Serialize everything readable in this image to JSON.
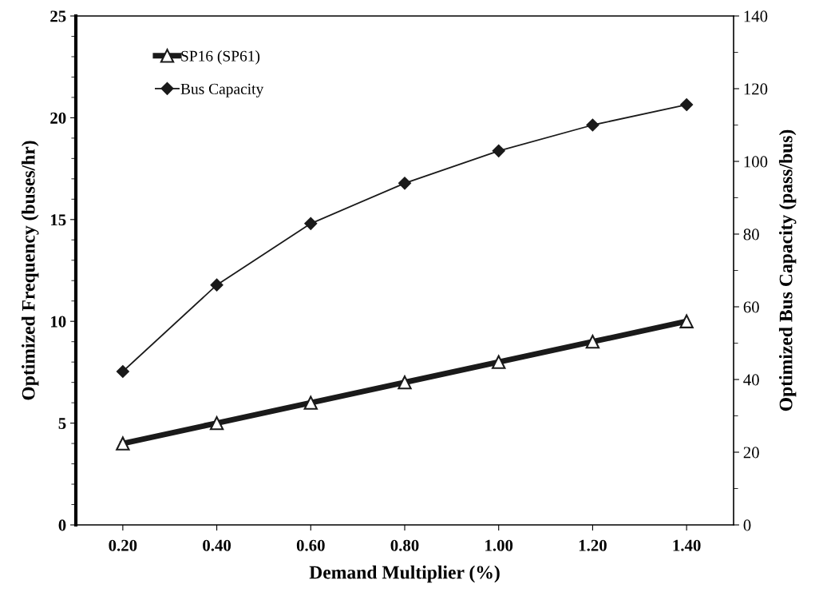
{
  "chart_data": {
    "type": "line",
    "xlabel": "Demand Multiplier (%)",
    "ylabel": "Optimized Frequency (buses/hr)",
    "y2label": "Optimized Bus Capacity (pass/bus)",
    "x": [
      0.2,
      0.4,
      0.6,
      0.8,
      1.0,
      1.2,
      1.4
    ],
    "xlim": [
      0.1,
      1.5
    ],
    "xticks": [
      {
        "value": 0.2,
        "label": "0.20"
      },
      {
        "value": 0.4,
        "label": "0.40"
      },
      {
        "value": 0.6,
        "label": "0.60"
      },
      {
        "value": 0.8,
        "label": "0.80"
      },
      {
        "value": 1.0,
        "label": "1.00"
      },
      {
        "value": 1.2,
        "label": "1.20"
      },
      {
        "value": 1.4,
        "label": "1.40"
      }
    ],
    "ylim": [
      0,
      25
    ],
    "yticks": [
      0,
      5,
      10,
      15,
      20,
      25
    ],
    "y2lim": [
      0,
      140
    ],
    "y2ticks": [
      0,
      20,
      40,
      60,
      80,
      100,
      120,
      140
    ],
    "legend": "top left",
    "grid": false,
    "series": [
      {
        "name": "SP16 (SP61)",
        "color": "#1a1a1a",
        "marker": "triangle",
        "values": [
          4,
          5,
          6,
          7,
          8,
          9,
          10
        ]
      },
      {
        "name": "Bus Capacity",
        "color": "#1a1a1a",
        "marker": "diamond",
        "axis": "y2",
        "values": [
          42.2,
          66,
          82.9,
          94,
          102.9,
          110,
          115.6
        ]
      }
    ]
  }
}
